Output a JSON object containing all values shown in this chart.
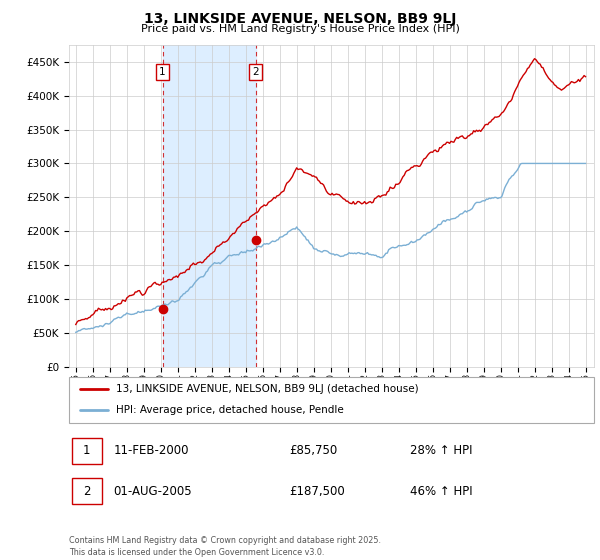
{
  "title": "13, LINKSIDE AVENUE, NELSON, BB9 9LJ",
  "subtitle": "Price paid vs. HM Land Registry's House Price Index (HPI)",
  "ylim": [
    0,
    475000
  ],
  "yticks": [
    0,
    50000,
    100000,
    150000,
    200000,
    250000,
    300000,
    350000,
    400000,
    450000
  ],
  "sale1_date": "11-FEB-2000",
  "sale1_price": 85750,
  "sale1_label": "28% ↑ HPI",
  "sale2_date": "01-AUG-2005",
  "sale2_price": 187500,
  "sale2_label": "46% ↑ HPI",
  "legend1": "13, LINKSIDE AVENUE, NELSON, BB9 9LJ (detached house)",
  "legend2": "HPI: Average price, detached house, Pendle",
  "footer": "Contains HM Land Registry data © Crown copyright and database right 2025.\nThis data is licensed under the Open Government Licence v3.0.",
  "line1_color": "#cc0000",
  "line2_color": "#7bafd4",
  "shade_color": "#ddeeff",
  "grid_color": "#cccccc",
  "sale1_year": 2000.11,
  "sale2_year": 2005.58,
  "xstart": 1995,
  "xend": 2025
}
